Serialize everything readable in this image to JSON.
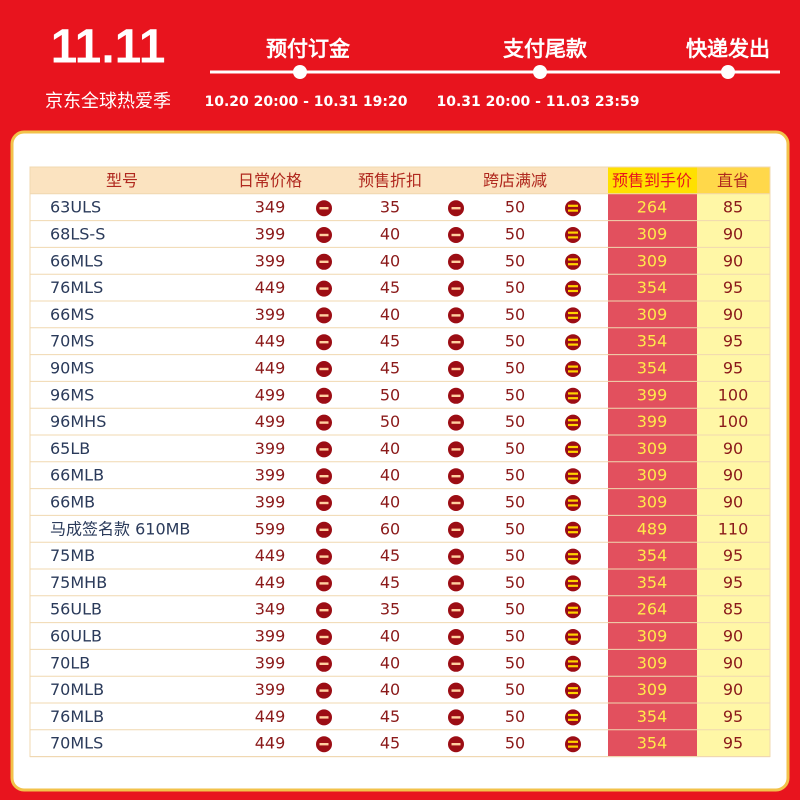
{
  "header": {
    "logo": "11.11",
    "subtitle": "京东全球热爱季",
    "steps": [
      {
        "label": "预付订金",
        "time": "10.20 20:00 - 10.31 19:20"
      },
      {
        "label": "支付尾款",
        "time": "10.31 20:00 - 11.03 23:59"
      },
      {
        "label": "快递发出"
      }
    ]
  },
  "table": {
    "columns": [
      "型号",
      "日常价格",
      "预售折扣",
      "跨店满减",
      "预售到手价",
      "直省"
    ],
    "rows": [
      [
        "63ULS",
        349,
        35,
        50,
        264,
        85
      ],
      [
        "68LS-S",
        399,
        40,
        50,
        309,
        90
      ],
      [
        "66MLS",
        399,
        40,
        50,
        309,
        90
      ],
      [
        "76MLS",
        449,
        45,
        50,
        354,
        95
      ],
      [
        "66MS",
        399,
        40,
        50,
        309,
        90
      ],
      [
        "70MS",
        449,
        45,
        50,
        354,
        95
      ],
      [
        "90MS",
        449,
        45,
        50,
        354,
        95
      ],
      [
        "96MS",
        499,
        50,
        50,
        399,
        100
      ],
      [
        "96MHS",
        499,
        50,
        50,
        399,
        100
      ],
      [
        "65LB",
        399,
        40,
        50,
        309,
        90
      ],
      [
        "66MLB",
        399,
        40,
        50,
        309,
        90
      ],
      [
        "66MB",
        399,
        40,
        50,
        309,
        90
      ],
      [
        "马成签名款 610MB",
        599,
        60,
        50,
        489,
        110
      ],
      [
        "75MB",
        449,
        45,
        50,
        354,
        95
      ],
      [
        "75MHB",
        449,
        45,
        50,
        354,
        95
      ],
      [
        "56ULB",
        349,
        35,
        50,
        264,
        85
      ],
      [
        "60ULB",
        399,
        40,
        50,
        309,
        90
      ],
      [
        "70LB",
        399,
        40,
        50,
        309,
        90
      ],
      [
        "70MLB",
        399,
        40,
        50,
        309,
        90
      ],
      [
        "76MLB",
        449,
        45,
        50,
        354,
        95
      ],
      [
        "70MLS",
        449,
        45,
        50,
        354,
        95
      ]
    ]
  }
}
